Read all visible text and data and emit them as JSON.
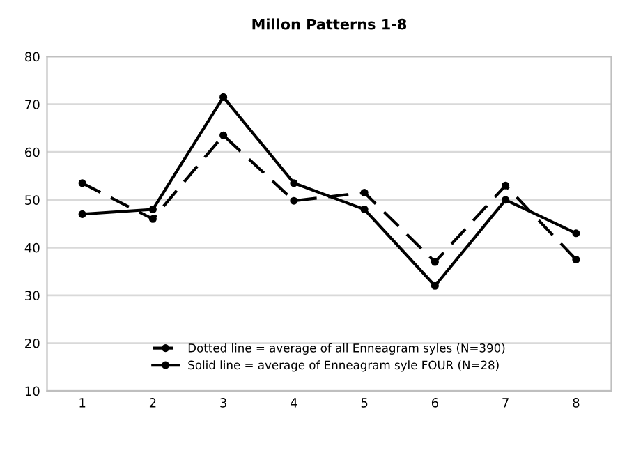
{
  "chart_data": {
    "type": "line",
    "title": "Millon Patterns 1-8",
    "categories": [
      "1",
      "2",
      "3",
      "4",
      "5",
      "6",
      "7",
      "8"
    ],
    "series": [
      {
        "name": "Dotted line = average of all Enneagram syles (N=390)",
        "color": "#000000",
        "line_style": "dashed",
        "values": [
          53.5,
          46,
          63.5,
          49.8,
          51.5,
          37,
          53,
          37.5
        ]
      },
      {
        "name": "Solid line = average of Enneagram syle FOUR (N=28)",
        "color": "#000000",
        "line_style": "solid",
        "values": [
          47,
          48,
          71.5,
          53.5,
          48,
          32,
          50,
          43
        ]
      }
    ],
    "ylim": [
      10,
      80
    ],
    "yticks": [
      10,
      20,
      30,
      40,
      50,
      60,
      70,
      80
    ],
    "grid": "y",
    "legend": "bottom",
    "marker": "circle"
  }
}
